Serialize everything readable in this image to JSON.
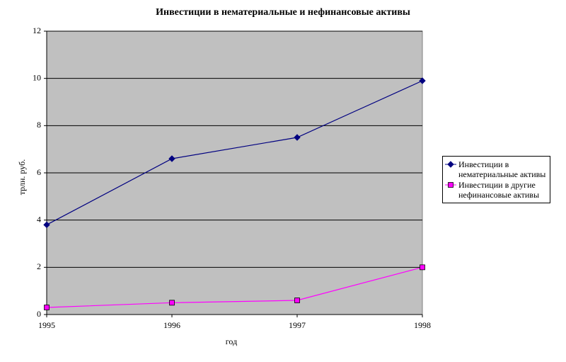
{
  "chart_data": {
    "type": "line",
    "title": "Инвестиции в нематериальные и нефинансовые активы",
    "x_label": "год",
    "y_label": "трлн. руб.",
    "x": [
      1995,
      1996,
      1997,
      1998
    ],
    "xlim": [
      1995,
      1998
    ],
    "xticks": [
      1995,
      1996,
      1997,
      1998
    ],
    "ylim": [
      0,
      12
    ],
    "yticks": [
      0,
      2,
      4,
      6,
      8,
      10,
      12
    ],
    "grid": true,
    "legend": "right",
    "plot_background": "#c0c0c0",
    "series": [
      {
        "name": "Инвестиции в нематериальные активы",
        "color": "#000080",
        "marker": "diamond",
        "values": [
          3.8,
          6.6,
          7.5,
          9.9
        ]
      },
      {
        "name": "Инвестиции в другие нефинансовые активы",
        "color": "#ff00ff",
        "marker": "square",
        "values": [
          0.3,
          0.5,
          0.6,
          2.0
        ]
      }
    ]
  }
}
